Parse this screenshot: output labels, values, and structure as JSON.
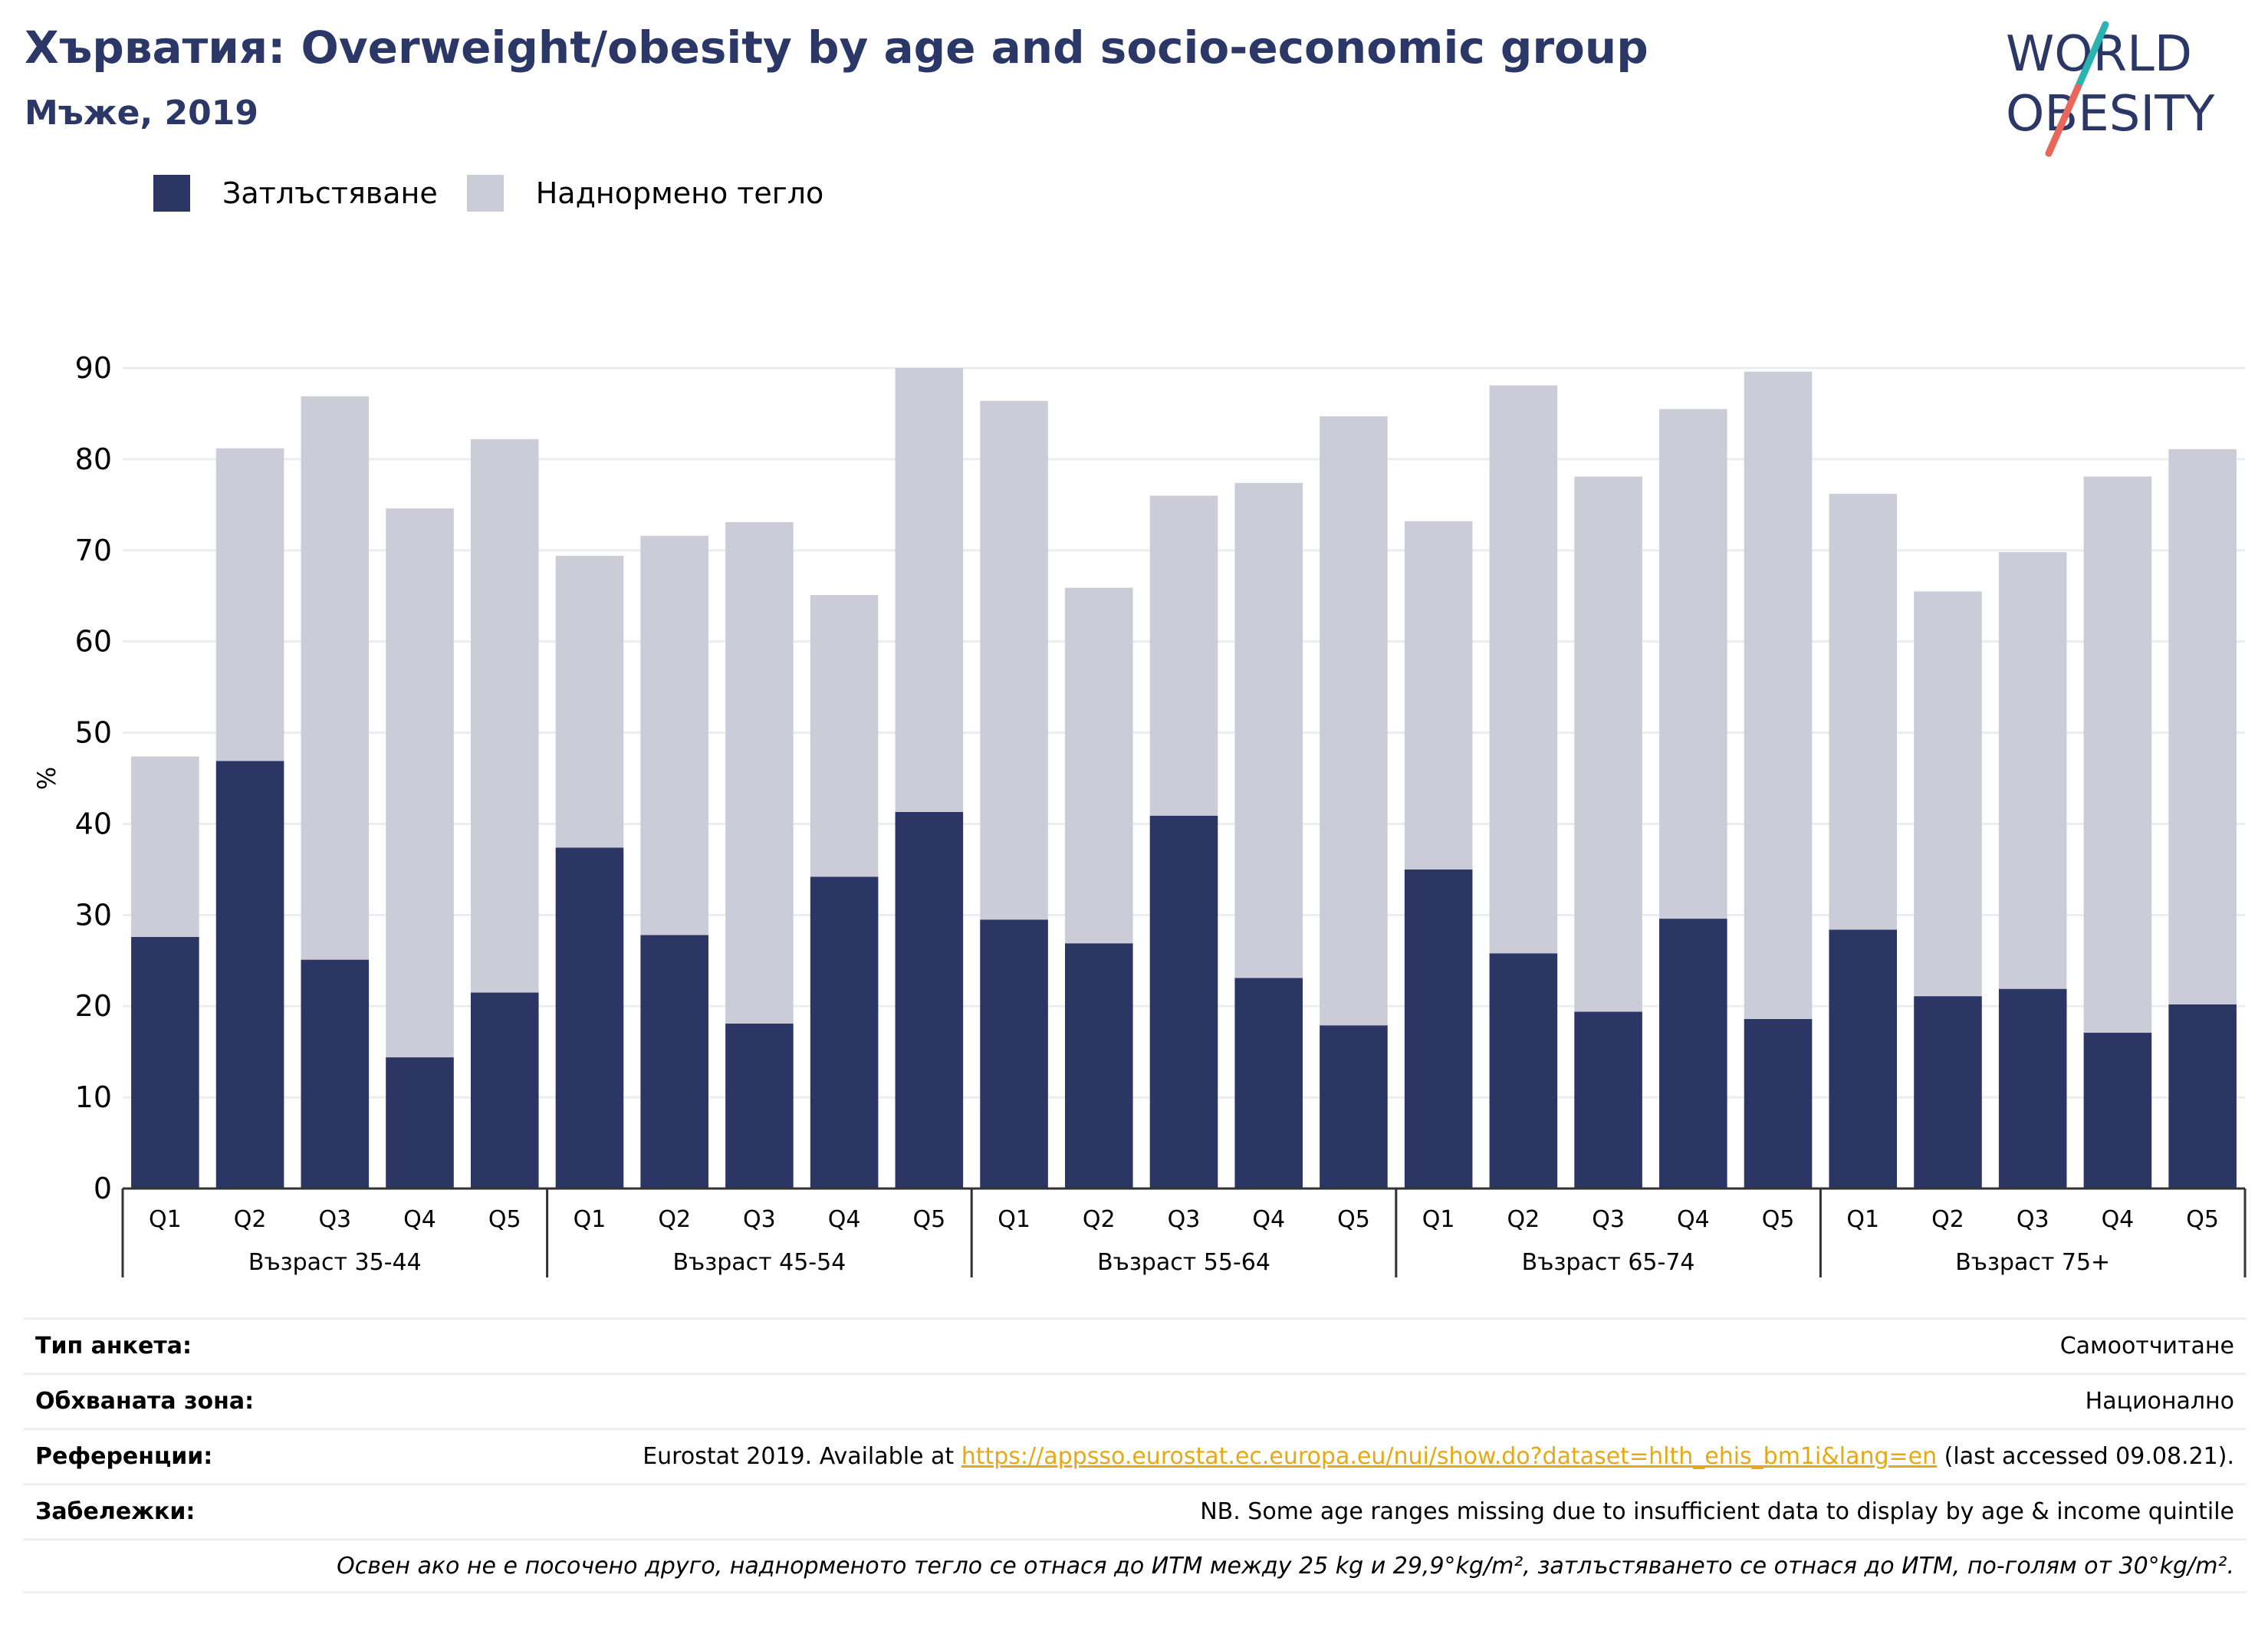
{
  "header": {
    "title": "Хърватия: Overweight/obesity by age and socio-economic group",
    "subtitle": "Мъже, 2019"
  },
  "logo": {
    "line1": "WORLD",
    "line2": "OBESITY",
    "icon": "world-obesity-logo"
  },
  "colors": {
    "obesity": "#2b3664",
    "overweight": "#cbccd8",
    "title": "#2b3766",
    "link": "#e7a817",
    "logo_teal": "#2ab3b1",
    "logo_red": "#e8675a"
  },
  "legend": {
    "obesity_label": "Затлъстяване",
    "overweight_label": "Наднормено тегло"
  },
  "chart_data": {
    "type": "bar",
    "stacked": true,
    "ylabel": "%",
    "ylim": [
      0,
      90
    ],
    "yticks": [
      0,
      10,
      20,
      30,
      40,
      50,
      60,
      70,
      80,
      90
    ],
    "grid": true,
    "legend_position": "top-left",
    "groups": [
      "Възраст 35-44",
      "Възраст 45-54",
      "Възраст 55-64",
      "Възраст 65-74",
      "Възраст 75+"
    ],
    "categories": [
      "Q1",
      "Q2",
      "Q3",
      "Q4",
      "Q5"
    ],
    "series": [
      {
        "name": "Затлъстяване",
        "values": [
          [
            27.6,
            46.9,
            25.1,
            14.4,
            21.5
          ],
          [
            37.4,
            27.8,
            18.1,
            34.2,
            41.3
          ],
          [
            29.5,
            26.9,
            40.9,
            23.1,
            17.9
          ],
          [
            35.0,
            25.8,
            19.4,
            29.6,
            18.6
          ],
          [
            28.4,
            21.1,
            21.9,
            17.1,
            20.2
          ]
        ]
      },
      {
        "name": "Наднормено тегло",
        "values": [
          [
            19.8,
            34.3,
            61.8,
            60.2,
            60.7
          ],
          [
            32.0,
            43.8,
            55.0,
            30.9,
            48.7
          ],
          [
            56.9,
            39.0,
            35.1,
            54.3,
            66.8
          ],
          [
            38.2,
            62.3,
            58.7,
            55.9,
            71.0
          ],
          [
            47.8,
            44.4,
            47.9,
            61.0,
            60.9
          ]
        ]
      }
    ]
  },
  "notes": {
    "survey_type_label": "Тип анкета:",
    "survey_type_value": "Самоотчитане",
    "coverage_label": "Обхваната зона:",
    "coverage_value": "Национално",
    "references_label": "Референции:",
    "references_prefix": "Eurostat 2019. Available at ",
    "references_link": "https://appsso.eurostat.ec.europa.eu/nui/show.do?dataset=hlth_ehis_bm1i&lang=en",
    "references_suffix": " (last accessed 09.08.21).",
    "remarks_label": "Забележки:",
    "remarks_value": "NB. Some age ranges missing due to insufficient data to display by age & income quintile",
    "definition": "Освен ако не е посочено друго, наднорменото тегло се отнася до ИТМ между 25 kg и 29,9°kg/m², затлъстяването се отнася до ИТМ, по-голям от 30°kg/m²."
  }
}
